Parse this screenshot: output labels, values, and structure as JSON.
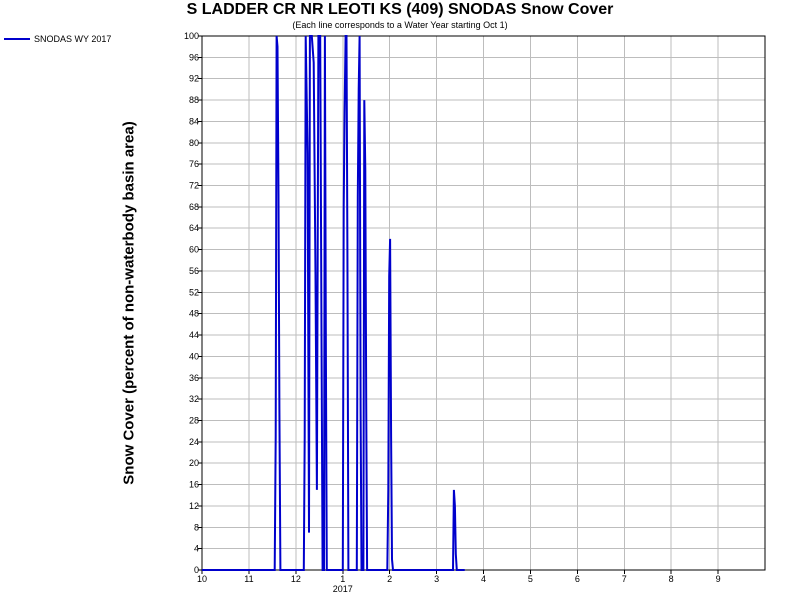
{
  "chart_data": {
    "type": "line",
    "title": "S LADDER CR NR LEOTI KS (409) SNODAS Snow Cover",
    "subtitle": "(Each line corresponds to a Water Year starting Oct 1)",
    "ylabel": "Snow Cover (percent of non-waterbody basin area)",
    "xlabel": "",
    "ylim": [
      0,
      100
    ],
    "yticks": [
      "0",
      "4",
      "8",
      "12",
      "16",
      "20",
      "24",
      "28",
      "32",
      "36",
      "40",
      "44",
      "48",
      "52",
      "56",
      "60",
      "64",
      "68",
      "72",
      "76",
      "80",
      "84",
      "88",
      "92",
      "96",
      "100"
    ],
    "xlim": [
      0,
      12
    ],
    "xticks": [
      {
        "x": 0,
        "label": "10"
      },
      {
        "x": 1,
        "label": "11"
      },
      {
        "x": 2,
        "label": "12"
      },
      {
        "x": 3,
        "label": "1"
      },
      {
        "x": 4,
        "label": "2"
      },
      {
        "x": 5,
        "label": "3"
      },
      {
        "x": 6,
        "label": "4"
      },
      {
        "x": 7,
        "label": "5"
      },
      {
        "x": 8,
        "label": "6"
      },
      {
        "x": 9,
        "label": "7"
      },
      {
        "x": 10,
        "label": "8"
      },
      {
        "x": 11,
        "label": "9"
      }
    ],
    "year_label": {
      "x": 3,
      "label": "2017"
    },
    "grid": true,
    "legend_position": "top-left",
    "series": [
      {
        "name": "SNODAS WY 2017",
        "color": "#0000cc",
        "points": [
          [
            0,
            0
          ],
          [
            1.55,
            0
          ],
          [
            1.57,
            25
          ],
          [
            1.59,
            100
          ],
          [
            1.61,
            98
          ],
          [
            1.63,
            70
          ],
          [
            1.65,
            30
          ],
          [
            1.67,
            0
          ],
          [
            2.17,
            0
          ],
          [
            2.19,
            25
          ],
          [
            2.21,
            100
          ],
          [
            2.25,
            78
          ],
          [
            2.28,
            7
          ],
          [
            2.3,
            100
          ],
          [
            2.34,
            100
          ],
          [
            2.38,
            95
          ],
          [
            2.42,
            55
          ],
          [
            2.45,
            15
          ],
          [
            2.48,
            100
          ],
          [
            2.52,
            100
          ],
          [
            2.55,
            40
          ],
          [
            2.57,
            0
          ],
          [
            2.6,
            0
          ],
          [
            2.62,
            100
          ],
          [
            2.64,
            40
          ],
          [
            2.66,
            0
          ],
          [
            3.0,
            0
          ],
          [
            3.02,
            68
          ],
          [
            3.04,
            86
          ],
          [
            3.06,
            100
          ],
          [
            3.08,
            100
          ],
          [
            3.1,
            60
          ],
          [
            3.12,
            0
          ],
          [
            3.3,
            0
          ],
          [
            3.32,
            70
          ],
          [
            3.34,
            90
          ],
          [
            3.36,
            100
          ],
          [
            3.38,
            30
          ],
          [
            3.4,
            0
          ],
          [
            3.44,
            0
          ],
          [
            3.46,
            88
          ],
          [
            3.48,
            75
          ],
          [
            3.5,
            32
          ],
          [
            3.52,
            0
          ],
          [
            3.95,
            0
          ],
          [
            3.97,
            15
          ],
          [
            3.99,
            55
          ],
          [
            4.01,
            62
          ],
          [
            4.03,
            25
          ],
          [
            4.05,
            2
          ],
          [
            4.07,
            0
          ],
          [
            5.35,
            0
          ],
          [
            5.37,
            15
          ],
          [
            5.39,
            12
          ],
          [
            5.41,
            3
          ],
          [
            5.43,
            0
          ],
          [
            5.6,
            0
          ]
        ]
      }
    ]
  }
}
